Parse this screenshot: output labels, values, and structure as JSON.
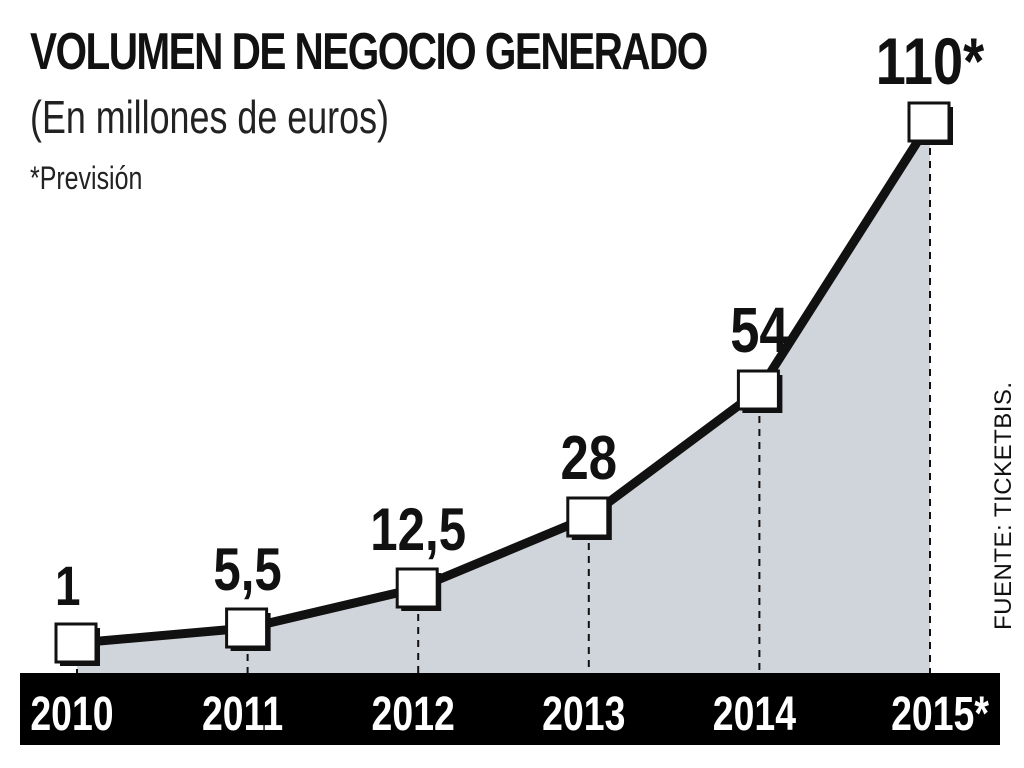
{
  "chart_data": {
    "type": "line",
    "title": "VOLUMEN DE NEGOCIO GENERADO",
    "subtitle": "(En millones de euros)",
    "note": "*Previsión",
    "source": "FUENTE: TICKETBIS.",
    "categories": [
      "2010",
      "2011",
      "2012",
      "2013",
      "2014",
      "2015*"
    ],
    "values": [
      1,
      5.5,
      12.5,
      28,
      54,
      110
    ],
    "value_labels": [
      "1",
      "5,5",
      "12,5",
      "28",
      "54",
      "110*"
    ],
    "area_fill": "#d0d4db",
    "line_color": "#111111",
    "axis_band_color": "#000000"
  }
}
